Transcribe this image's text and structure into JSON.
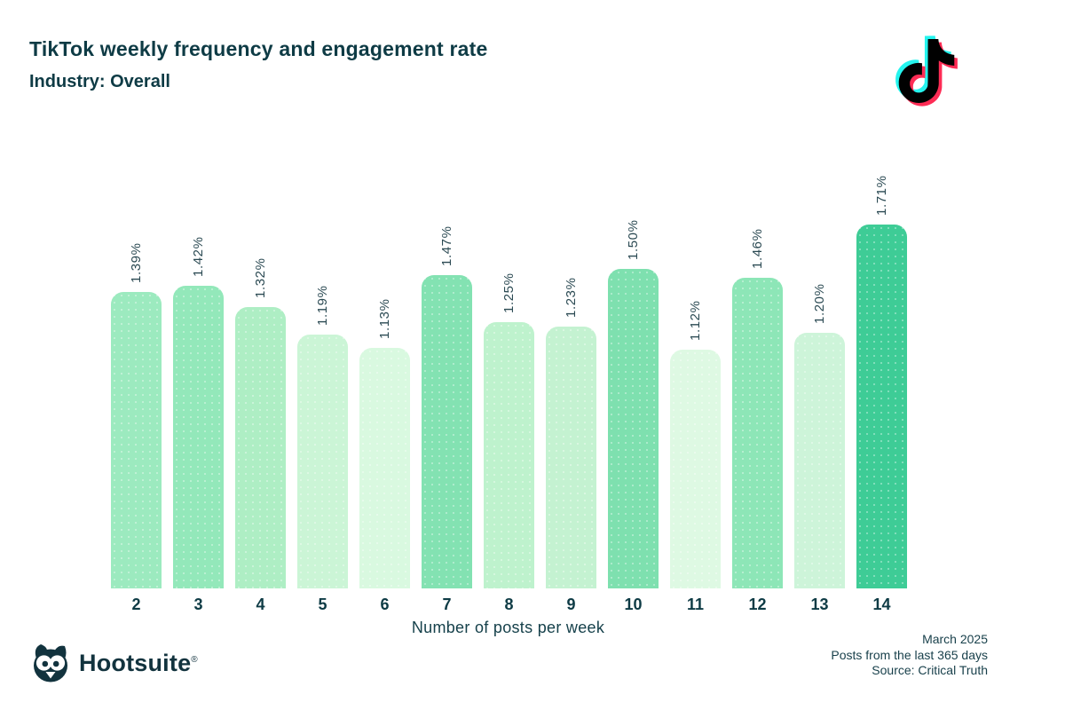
{
  "header": {
    "title": "TikTok weekly frequency and engagement rate",
    "subtitle": "Industry: Overall"
  },
  "chart_data": {
    "type": "bar",
    "title": "TikTok weekly frequency and engagement rate",
    "subtitle": "Industry: Overall",
    "xlabel": "Number of posts per week",
    "ylabel": "",
    "categories": [
      "2",
      "3",
      "4",
      "5",
      "6",
      "7",
      "8",
      "9",
      "10",
      "11",
      "12",
      "13",
      "14"
    ],
    "values": [
      1.39,
      1.42,
      1.32,
      1.19,
      1.13,
      1.47,
      1.25,
      1.23,
      1.5,
      1.12,
      1.46,
      1.2,
      1.71
    ],
    "value_labels": [
      "1.39%",
      "1.42%",
      "1.32%",
      "1.19%",
      "1.13%",
      "1.47%",
      "1.25%",
      "1.23%",
      "1.50%",
      "1.12%",
      "1.46%",
      "1.20%",
      "1.71%"
    ],
    "bar_colors": [
      "#9ceabf",
      "#93e8ba",
      "#aeeec4",
      "#cbf5d6",
      "#d9f9e0",
      "#83e2b2",
      "#bef2cd",
      "#c4f2d1",
      "#7ee0af",
      "#def9e3",
      "#8de6b7",
      "#cdf4d9",
      "#3ecc96"
    ],
    "ylim": [
      0,
      1.71
    ],
    "grid": false,
    "value_labels_rotated": true,
    "legend": "none"
  },
  "footer": {
    "brand": "Hootsuite",
    "brand_mark": "®",
    "notes": [
      "March 2025",
      "Posts from the last 365 days",
      "Source: Critical Truth"
    ]
  },
  "icons": {
    "tiktok_logo": "tiktok-note-icon",
    "hootsuite_owl": "owl-icon"
  },
  "colors": {
    "title_text": "#0e3b45",
    "value_label_text": "#2b4a53",
    "tick_text": "#0e3b45",
    "axis_title_text": "#16414b",
    "footer_text": "#173f4a",
    "brand_dark": "#12333e",
    "tiktok_cyan": "#25f4ee",
    "tiktok_red": "#fe2c55",
    "tiktok_black": "#010101",
    "background": "#ffffff"
  }
}
